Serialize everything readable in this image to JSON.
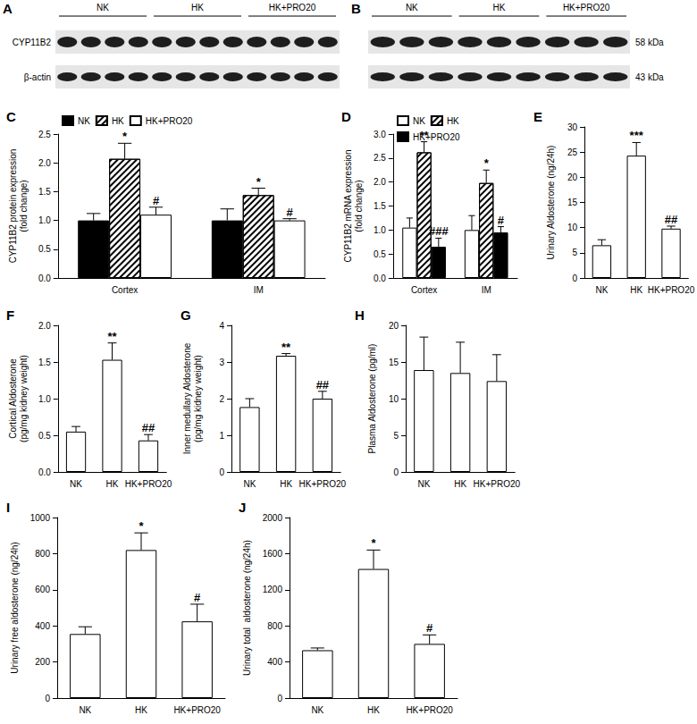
{
  "blots": [
    {
      "panel": "A",
      "groups": [
        "NK",
        "HK",
        "HK+PRO20"
      ],
      "lanes_per_group": 4,
      "row_labels": [
        "CYP11B2",
        "β-actin"
      ],
      "label_side": "left"
    },
    {
      "panel": "B",
      "groups": [
        "NK",
        "HK",
        "HK+PRO20"
      ],
      "lanes_per_group": 3,
      "row_labels": [
        "58 kDa",
        "43 kDa"
      ],
      "label_side": "right"
    }
  ],
  "chart_data": [
    {
      "type": "bar",
      "title": "C",
      "ylabel": "CYP11B2 protein expression\n(fold change)",
      "categories": [
        "Cortex",
        "IM"
      ],
      "series": [
        {
          "name": "NK",
          "color": "#000000",
          "values": [
            1.0,
            1.0
          ],
          "errors": [
            0.12,
            0.2
          ],
          "annotations": [
            null,
            null
          ]
        },
        {
          "name": "HK",
          "color": "#ffffff",
          "marker": "hatched",
          "values": [
            2.07,
            1.44
          ],
          "errors": [
            0.27,
            0.12
          ],
          "annotations": [
            "*",
            "*"
          ]
        },
        {
          "name": "HK+PRO20",
          "color": "#ffffff",
          "values": [
            1.1,
            1.0
          ],
          "errors": [
            0.13,
            0.03
          ],
          "annotations": [
            "#",
            "#"
          ]
        }
      ],
      "ylim": [
        0,
        2.5
      ],
      "yticks": [
        {
          "value": 0,
          "label": "0.0"
        },
        0.5,
        {
          "value": 1,
          "label": "1.0"
        },
        1.5,
        {
          "value": 2,
          "label": "2.0"
        },
        2.5
      ],
      "legend": "top-left",
      "grid": false
    },
    {
      "type": "bar",
      "title": "D",
      "ylabel": "CYP11B2 mRNA expression\n(fold change)",
      "categories": [
        "Cortex",
        "IM"
      ],
      "series": [
        {
          "name": "NK",
          "color": "#ffffff",
          "values": [
            1.05,
            1.0
          ],
          "errors": [
            0.2,
            0.3
          ],
          "annotations": [
            null,
            null
          ]
        },
        {
          "name": "HK",
          "color": "#ffffff",
          "marker": "hatched",
          "values": [
            2.62,
            1.98
          ],
          "errors": [
            0.22,
            0.27
          ],
          "annotations": [
            "**",
            "*"
          ]
        },
        {
          "name": "HK+PRO20",
          "color": "#000000",
          "values": [
            0.65,
            0.95
          ],
          "errors": [
            0.18,
            0.12
          ],
          "annotations": [
            "###",
            "#"
          ]
        }
      ],
      "ylim": [
        0,
        3
      ],
      "yticks": [
        {
          "value": 0,
          "label": "0.0"
        },
        0.5,
        {
          "value": 1,
          "label": "1.0"
        },
        1.5,
        {
          "value": 2,
          "label": "2.0"
        },
        2.5,
        {
          "value": 3,
          "label": "3.0"
        }
      ],
      "legend": "top-left",
      "grid": false
    },
    {
      "type": "bar",
      "title": "E",
      "ylabel": "Urinary Aldosterone (ng/24h)",
      "categories": [
        "NK",
        "HK",
        "HK+PRO20"
      ],
      "values": [
        6.5,
        24.3,
        9.8
      ],
      "errors": [
        1.1,
        2.6,
        0.5
      ],
      "annotations": [
        null,
        "***",
        "##"
      ],
      "color": "#ffffff",
      "ylim": [
        0,
        30
      ],
      "yticks": [
        0,
        5,
        10,
        15,
        20,
        25,
        30
      ],
      "grid": false
    },
    {
      "type": "bar",
      "title": "F",
      "ylabel": "Cortical Aldosterone\n(pg/mg kidney weight)",
      "categories": [
        "NK",
        "HK",
        "HK+PRO20"
      ],
      "values": [
        0.55,
        1.53,
        0.43
      ],
      "errors": [
        0.07,
        0.23,
        0.08
      ],
      "annotations": [
        null,
        "**",
        "##"
      ],
      "color": "#ffffff",
      "ylim": [
        0,
        2
      ],
      "yticks": [
        {
          "value": 0,
          "label": "0.0"
        },
        0.5,
        {
          "value": 1,
          "label": "1.0"
        },
        1.5,
        {
          "value": 2,
          "label": "2.0"
        }
      ],
      "grid": false
    },
    {
      "type": "bar",
      "title": "G",
      "ylabel": "Inner medullary Aldosterone\n(pg/mg kidney weight)",
      "categories": [
        "NK",
        "HK",
        "HK+PRO20"
      ],
      "values": [
        1.77,
        3.17,
        2.0
      ],
      "errors": [
        0.23,
        0.06,
        0.2
      ],
      "annotations": [
        null,
        "**",
        "##"
      ],
      "color": "#ffffff",
      "ylim": [
        0,
        4
      ],
      "yticks": [
        0,
        1,
        2,
        3,
        4
      ],
      "grid": false
    },
    {
      "type": "bar",
      "title": "H",
      "ylabel": "Plasma Aldosterone (pg/ml)",
      "categories": [
        "NK",
        "HK",
        "HK+PRO20"
      ],
      "values": [
        13.9,
        13.5,
        12.4
      ],
      "errors": [
        4.5,
        4.2,
        3.6
      ],
      "annotations": [
        null,
        null,
        null
      ],
      "color": "#ffffff",
      "ylim": [
        0,
        20
      ],
      "yticks": [
        0,
        5,
        10,
        15,
        20
      ],
      "grid": false
    },
    {
      "type": "bar",
      "title": "I",
      "ylabel": "Urinary free aldosterone (ng/24h)",
      "categories": [
        "NK",
        "HK",
        "HK+PRO20"
      ],
      "values": [
        355,
        820,
        425
      ],
      "errors": [
        40,
        95,
        95
      ],
      "annotations": [
        null,
        "*",
        "#"
      ],
      "color": "#ffffff",
      "ylim": [
        0,
        1000
      ],
      "yticks": [
        0,
        200,
        400,
        600,
        800,
        1000
      ],
      "grid": false
    },
    {
      "type": "bar",
      "title": "J",
      "ylabel": "Urinary total  aldosterone (ng/24h)",
      "categories": [
        "NK",
        "HK",
        "HK+PRO20"
      ],
      "values": [
        530,
        1430,
        600
      ],
      "errors": [
        25,
        210,
        100
      ],
      "annotations": [
        null,
        "*",
        "#"
      ],
      "color": "#ffffff",
      "ylim": [
        0,
        2000
      ],
      "yticks": [
        0,
        400,
        800,
        1200,
        1600,
        2000
      ],
      "grid": false
    }
  ]
}
